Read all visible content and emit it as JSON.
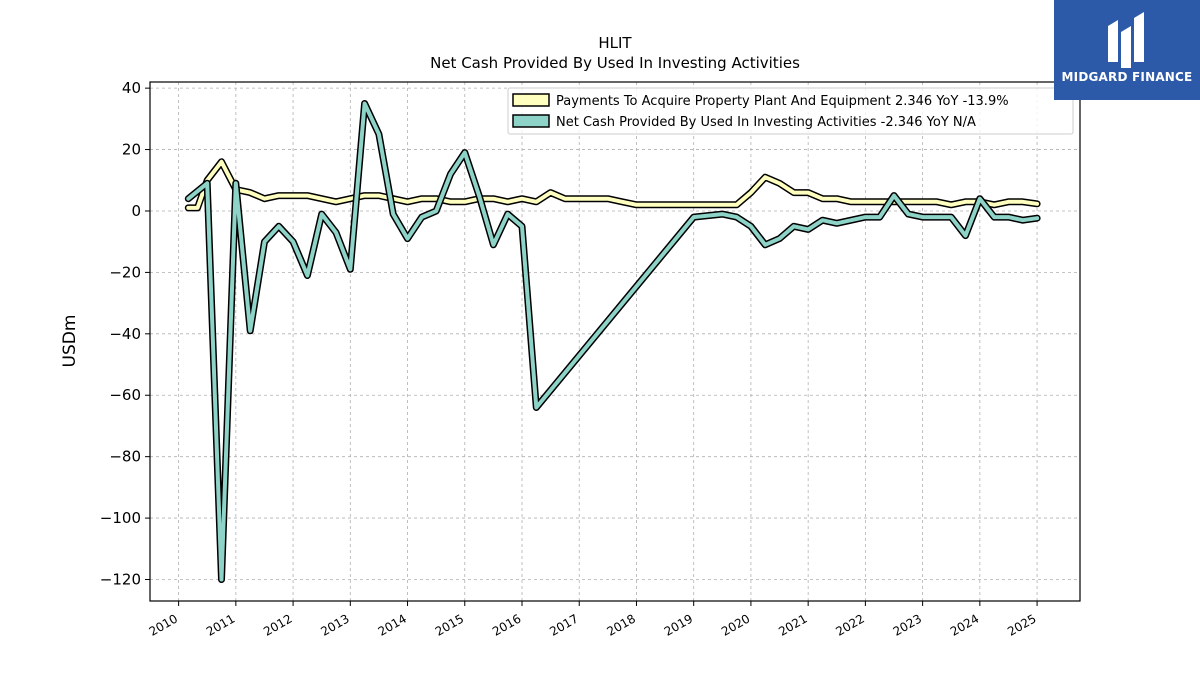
{
  "logo": {
    "text": "MIDGARD FINANCE"
  },
  "chart_data": {
    "type": "line",
    "title": "HLIT",
    "subtitle": "Net Cash Provided By Used In Investing Activities",
    "xlabel": "",
    "ylabel": "USDm",
    "xlim": [
      2009.5,
      2025.75
    ],
    "ylim": [
      -127,
      42
    ],
    "xticks": [
      "2010",
      "2011",
      "2012",
      "2013",
      "2014",
      "2015",
      "2016",
      "2017",
      "2018",
      "2019",
      "2020",
      "2021",
      "2022",
      "2023",
      "2024",
      "2025"
    ],
    "yticks": [
      "40",
      "20",
      "0",
      "−20",
      "−40",
      "−60",
      "−80",
      "−100",
      "−120"
    ],
    "grid": true,
    "legend_position": "top-right",
    "series": [
      {
        "name": "Payments To Acquire Property Plant And Equipment  2.346 YoY -13.9%",
        "color": "#ffffbf",
        "x": [
          2010.17,
          2010.33,
          2010.5,
          2010.75,
          2011.0,
          2011.25,
          2011.5,
          2011.75,
          2012.0,
          2012.25,
          2012.5,
          2012.75,
          2013.0,
          2013.25,
          2013.5,
          2013.75,
          2014.0,
          2014.25,
          2014.5,
          2014.75,
          2015.0,
          2015.25,
          2015.5,
          2015.75,
          2016.0,
          2016.25,
          2016.5,
          2016.75,
          2017.0,
          2017.25,
          2017.5,
          2017.75,
          2018.0,
          2018.25,
          2018.5,
          2018.75,
          2019.0,
          2019.25,
          2019.5,
          2019.75,
          2020.0,
          2020.25,
          2020.5,
          2020.75,
          2021.0,
          2021.25,
          2021.5,
          2021.75,
          2022.0,
          2022.25,
          2022.5,
          2022.75,
          2023.0,
          2023.25,
          2023.5,
          2023.75,
          2024.0,
          2024.25,
          2024.5,
          2024.75,
          2025.0
        ],
        "values": [
          1.0,
          1.0,
          10.0,
          16.0,
          7.0,
          6.0,
          4.0,
          5.0,
          5.0,
          5.0,
          4.0,
          3.0,
          4.0,
          5.0,
          5.0,
          4.0,
          3.0,
          4.0,
          4.0,
          3.0,
          3.0,
          4.0,
          4.0,
          3.0,
          4.0,
          3.0,
          6.0,
          4.0,
          4.0,
          4.0,
          4.0,
          3.0,
          2.0,
          2.0,
          2.0,
          2.0,
          2.0,
          2.0,
          2.0,
          2.0,
          6.0,
          11.0,
          9.0,
          6.0,
          6.0,
          4.0,
          4.0,
          3.0,
          3.0,
          3.0,
          3.0,
          3.0,
          3.0,
          3.0,
          2.0,
          3.0,
          3.0,
          2.0,
          3.0,
          3.0,
          2.346
        ]
      },
      {
        "name": "Net Cash Provided By Used In Investing Activities  -2.346 YoY N/A",
        "color": "#8dd3c7",
        "x": [
          2010.17,
          2010.5,
          2010.75,
          2011.0,
          2011.25,
          2011.5,
          2011.75,
          2012.0,
          2012.25,
          2012.5,
          2012.75,
          2013.0,
          2013.25,
          2013.5,
          2013.75,
          2014.0,
          2014.25,
          2014.5,
          2014.75,
          2015.0,
          2015.25,
          2015.5,
          2015.75,
          2016.0,
          2016.25,
          2019.0,
          2019.25,
          2019.5,
          2019.75,
          2020.0,
          2020.25,
          2020.5,
          2020.75,
          2021.0,
          2021.25,
          2021.5,
          2021.75,
          2022.0,
          2022.25,
          2022.5,
          2022.75,
          2023.0,
          2023.25,
          2023.5,
          2023.75,
          2024.0,
          2024.25,
          2024.5,
          2024.75,
          2025.0
        ],
        "values": [
          4.0,
          9.0,
          -120.0,
          9.0,
          -39.0,
          -10.0,
          -5.0,
          -10.0,
          -21.0,
          -1.0,
          -7.0,
          -19.0,
          35.0,
          25.0,
          -1.0,
          -9.0,
          -2.0,
          0.0,
          12.0,
          19.0,
          5.0,
          -11.0,
          -1.0,
          -5.0,
          -64.0,
          -2.0,
          -1.5,
          -1.0,
          -2.0,
          -5.0,
          -11.0,
          -9.0,
          -5.0,
          -6.0,
          -3.0,
          -4.0,
          -3.0,
          -2.0,
          -2.0,
          5.0,
          -1.0,
          -2.0,
          -2.0,
          -2.0,
          -8.0,
          4.0,
          -2.0,
          -2.0,
          -3.0,
          -2.346
        ]
      }
    ]
  }
}
